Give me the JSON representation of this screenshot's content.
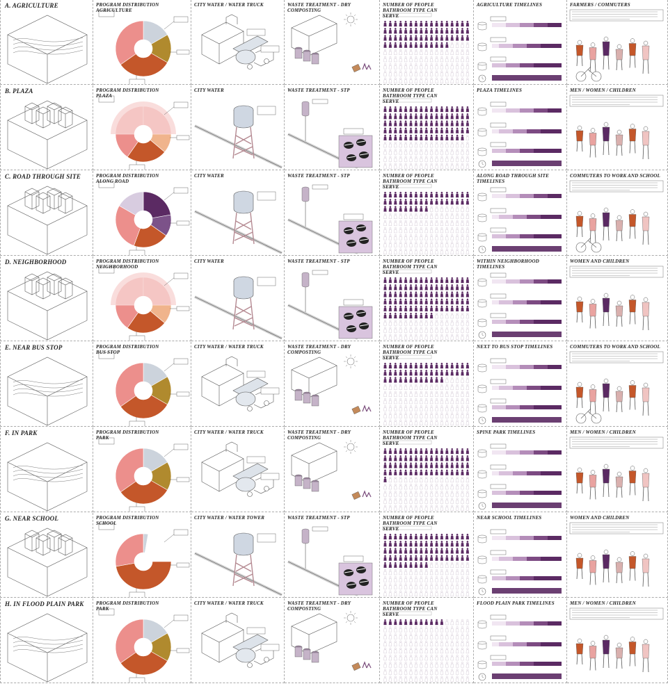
{
  "rows": [
    {
      "title": "A. AGRICULTURE",
      "program": "PROGRAM DISTRIBUTION AGRICULTURE",
      "water": "CITY WATER / WATER TRUCK",
      "waste": "WASTE TREATMENT - DRY COMPOSTING",
      "people": "NUMBER OF PEOPLE BATHROOM TYPE CAN SERVE",
      "timeline": "AGRICULTURE TIMELINES",
      "users": "FARMERS / COMMUTERS",
      "waterType": "truck",
      "wasteType": "dry",
      "pieType": "a",
      "peopleFill": 0.42
    },
    {
      "title": "B. PLAZA",
      "program": "PROGRAM DISTRIBUTION PLAZA",
      "water": "CITY WATER",
      "waste": "WASTE TREATMENT - STP",
      "people": "NUMBER OF PEOPLE BATHROOM TYPE CAN SERVE",
      "timeline": "PLAZA TIMELINES",
      "users": "MEN / WOMEN / CHILDREN",
      "waterType": "tower",
      "wasteType": "stp",
      "pieType": "b",
      "peopleFill": 0.55
    },
    {
      "title": "C. ROAD THROUGH SITE",
      "program": "PROGRAM DISTRIBUTION ALONG ROAD",
      "water": "CITY WATER",
      "waste": "WASTE TREATMENT - STP",
      "people": "NUMBER OF PEOPLE BATHROOM TYPE CAN SERVE",
      "timeline": "ALONG ROAD THROUGH SITE TIMELINES",
      "users": "COMMUTERS TO WORK AND SCHOOL",
      "waterType": "tower",
      "wasteType": "stp",
      "pieType": "c",
      "peopleFill": 0.28
    },
    {
      "title": "D. NEIGHBORHOOD",
      "program": "PROGRAM DISTRIBUTION NEIGHBORHOOD",
      "water": "CITY WATER",
      "waste": "WASTE TREATMENT - STP",
      "people": "NUMBER OF PEOPLE BATHROOM TYPE CAN SERVE",
      "timeline": "WITHIN NEIGHBORHOOD TIMELINES",
      "users": "WOMEN AND CHILDREN",
      "waterType": "tower",
      "wasteType": "stp",
      "pieType": "b",
      "peopleFill": 0.62
    },
    {
      "title": "E. NEAR BUS STOP",
      "program": "PROGRAM DISTRIBUTION BUS STOP",
      "water": "CITY WATER / WATER TRUCK",
      "waste": "WASTE TREATMENT - DRY COMPOSTING",
      "people": "NUMBER OF PEOPLE BATHROOM TYPE CAN SERVE",
      "timeline": "NEXT TO BUS STOP TIMELINES",
      "users": "COMMUTERS TO WORK AND SCHOOL",
      "waterType": "truck",
      "wasteType": "dry",
      "pieType": "a",
      "peopleFill": 0.3
    },
    {
      "title": "F. IN PARK",
      "program": "PROGRAM DISTRIBUTION PARK",
      "water": "CITY WATER / WATER TRUCK",
      "waste": "WASTE TREATMENT - DRY COMPOSTING",
      "people": "NUMBER OF PEOPLE BATHROOM TYPE CAN SERVE",
      "timeline": "SPINE PARK TIMELINES",
      "users": "MEN / WOMEN / CHILDREN",
      "waterType": "truck",
      "wasteType": "dry",
      "pieType": "a",
      "peopleFill": 0.45
    },
    {
      "title": "G. NEAR SCHOOL",
      "program": "PROGRAM DISTRIBUTION SCHOOL",
      "water": "CITY WATER / WATER TOWER",
      "waste": "WASTE TREATMENT - STP",
      "people": "NUMBER OF PEOPLE BATHROOM TYPE CAN SERVE",
      "timeline": "NEAR SCHOOL TIMELINES",
      "users": "WOMEN AND CHILDREN",
      "waterType": "tower",
      "wasteType": "stp",
      "pieType": "g",
      "peopleFill": 0.5
    },
    {
      "title": "H. IN FLOOD PLAIN PARK",
      "program": "PROGRAM DISTRIBUTION PARK",
      "water": "CITY WATER / WATER TRUCK",
      "waste": "WASTE TREATMENT - DRY COMPOSTING",
      "people": "NUMBER OF PEOPLE BATHROOM TYPE CAN SERVE",
      "timeline": "FLOOD PLAIN PARK TIMELINES",
      "users": "MEN / WOMEN / CHILDREN",
      "waterType": "truck",
      "wasteType": "dry",
      "pieType": "a",
      "peopleFill": 0.08
    }
  ],
  "colors": {
    "pink": "#ec8f8c",
    "orange": "#c4572a",
    "olive": "#b08a2e",
    "grey": "#ccd3dc",
    "purple": "#5b2a63",
    "lightPink": "#f5c6c4"
  }
}
